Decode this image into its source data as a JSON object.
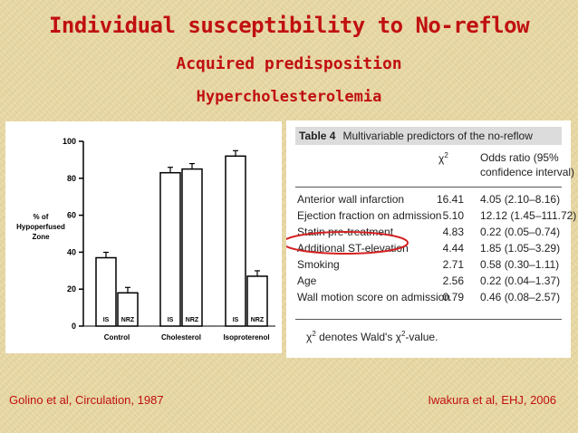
{
  "slide": {
    "title": "Individual susceptibility to No-reflow",
    "subtitle": "Acquired predisposition",
    "subtitle2": "Hypercholesterolemia",
    "citation_left": "Golino et al, Circulation, 1987",
    "citation_right": "Iwakura et al, EHJ, 2006",
    "colors": {
      "title": "#c01010",
      "background": "#e9d9a4",
      "highlight": "#d42020"
    }
  },
  "chart_data": {
    "type": "bar",
    "ylabel": "% of Hypoperfused Zone",
    "ylim": [
      0,
      100
    ],
    "yticks": [
      0,
      20,
      40,
      60,
      80,
      100
    ],
    "groups": [
      {
        "name": "Control",
        "bars": [
          {
            "label": "IS",
            "value": 37
          },
          {
            "label": "NRZ",
            "value": 18
          }
        ]
      },
      {
        "name": "Cholesterol",
        "bars": [
          {
            "label": "IS",
            "value": 83
          },
          {
            "label": "NRZ",
            "value": 85
          }
        ]
      },
      {
        "name": "Isoproterenol",
        "bars": [
          {
            "label": "IS",
            "value": 92
          },
          {
            "label": "NRZ",
            "value": 27
          }
        ]
      }
    ]
  },
  "table": {
    "number": "Table 4",
    "caption": "Multivariable predictors of the no-reflow",
    "col_chi": "χ",
    "col_chi_sup": "2",
    "col_or_line1": "Odds ratio (95%",
    "col_or_line2": "confidence interval)",
    "rows": [
      {
        "predictor": "Anterior wall infarction",
        "chi": "16.41",
        "or": "4.05 (2.10–8.16)"
      },
      {
        "predictor": "Ejection fraction on admission",
        "chi": "5.10",
        "or": "12.12 (1.45–111.72)"
      },
      {
        "predictor": "Statin pre-treatment",
        "chi": "4.83",
        "or": "0.22 (0.05–0.74)"
      },
      {
        "predictor": "Additional ST-elevation",
        "chi": "4.44",
        "or": "1.85 (1.05–3.29)"
      },
      {
        "predictor": "Smoking",
        "chi": "2.71",
        "or": "0.58 (0.30–1.11)"
      },
      {
        "predictor": "Age",
        "chi": "2.56",
        "or": "0.22 (0.04–1.37)"
      },
      {
        "predictor": "Wall motion score on admission",
        "chi": "0.79",
        "or": "0.46 (0.08–2.57)"
      }
    ],
    "footnote_pre": "χ",
    "footnote_sup": "2",
    "footnote_mid": " denotes Wald's χ",
    "footnote_sup2": "2",
    "footnote_post": "-value."
  }
}
